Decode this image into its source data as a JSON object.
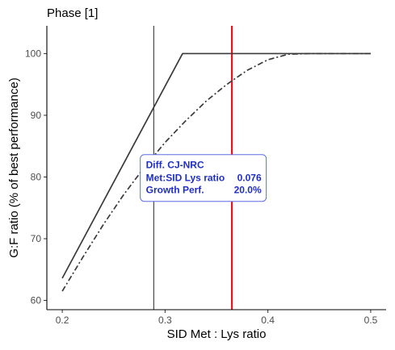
{
  "chart_data": {
    "type": "line",
    "title": "Phase [1]",
    "xlabel": "SID Met : Lys ratio",
    "ylabel": "G:F ratio (% of best performance)",
    "xlim": [
      0.185,
      0.515
    ],
    "ylim": [
      58.5,
      104.5
    ],
    "xticks": [
      0.2,
      0.3,
      0.4,
      0.5
    ],
    "xtick_labels": [
      "0.2",
      "0.3",
      "0.4",
      "0.5"
    ],
    "yticks": [
      60,
      70,
      80,
      90,
      100
    ],
    "ytick_labels": [
      "60",
      "70",
      "80",
      "90",
      "100"
    ],
    "grid": false,
    "series": [
      {
        "style": "solid",
        "color": "#3a3a3a",
        "x": [
          0.2,
          0.317,
          0.5
        ],
        "y": [
          63.6,
          100,
          100
        ]
      },
      {
        "style": "dashdot",
        "color": "#3a3a3a",
        "x": [
          0.2,
          0.22,
          0.24,
          0.26,
          0.28,
          0.3,
          0.32,
          0.34,
          0.36,
          0.38,
          0.4,
          0.42,
          0.44,
          0.46,
          0.48,
          0.5
        ],
        "y": [
          61.5,
          67.0,
          72.3,
          77.2,
          81.6,
          85.6,
          89.1,
          92.3,
          95.0,
          97.3,
          99.0,
          99.9,
          100,
          100,
          100,
          100
        ]
      }
    ],
    "vlines": [
      {
        "x": 0.289,
        "color": "#3a3a3a"
      },
      {
        "x": 0.365,
        "color": "#e8161b"
      }
    ],
    "annotation": {
      "x": 0.29,
      "y": 76.7,
      "title": "Diff. CJ-NRC",
      "rows": [
        {
          "label": "Met:SID Lys ratio",
          "value": "0.076"
        },
        {
          "label": "Growth Perf.",
          "value": "20.0%"
        }
      ],
      "text_color": "#1f2fc4",
      "border_color": "#5b6fe0"
    }
  }
}
